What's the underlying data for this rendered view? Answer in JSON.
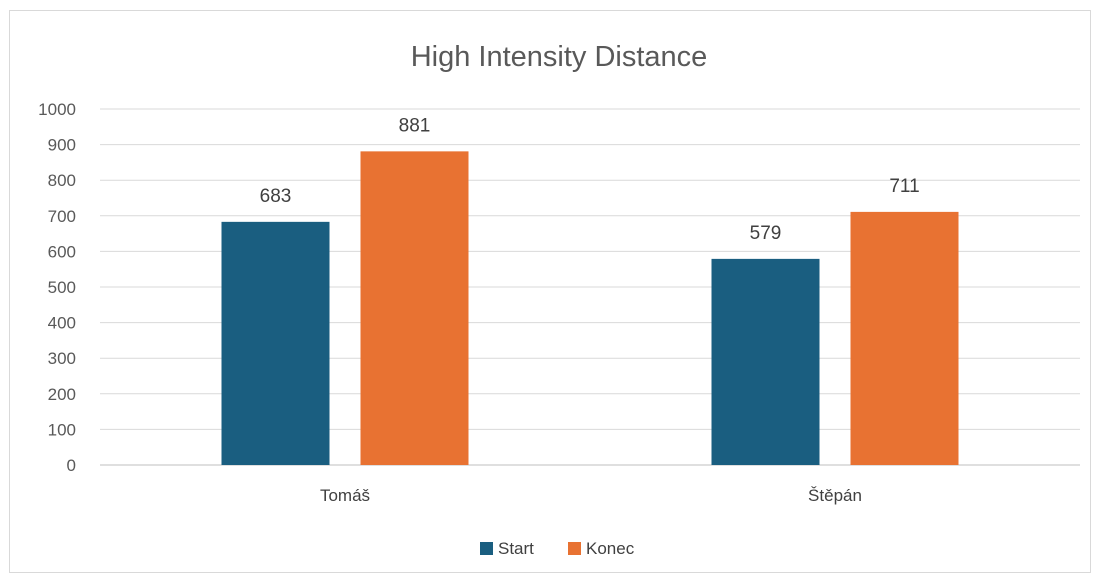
{
  "chart_data": {
    "type": "bar",
    "title": "High Intensity Distance",
    "xlabel": "",
    "ylabel": "",
    "categories": [
      "Tomáš",
      "Štěpán"
    ],
    "series": [
      {
        "name": "Start",
        "values": [
          683,
          579
        ],
        "color": "#1a5e80"
      },
      {
        "name": "Konec",
        "values": [
          881,
          711
        ],
        "color": "#e87232"
      }
    ],
    "ylim": [
      0,
      1000
    ],
    "yticks": [
      0,
      100,
      200,
      300,
      400,
      500,
      600,
      700,
      800,
      900,
      1000
    ],
    "grid": true,
    "legend_position": "bottom",
    "data_labels": true
  }
}
